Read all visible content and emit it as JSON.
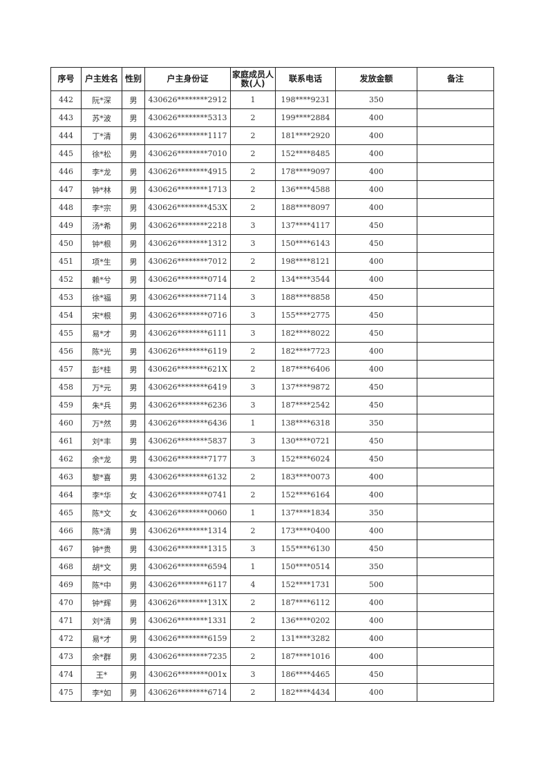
{
  "table": {
    "headers": [
      "序号",
      "户主姓名",
      "性别",
      "户主身份证",
      "家庭成员人数(人)",
      "联系电话",
      "发放金额",
      "备注"
    ],
    "rows": [
      [
        "442",
        "阮*深",
        "男",
        "430626********2912",
        "1",
        "198****9231",
        "350",
        ""
      ],
      [
        "443",
        "苏*波",
        "男",
        "430626********5313",
        "2",
        "199****2884",
        "400",
        ""
      ],
      [
        "444",
        "丁*清",
        "男",
        "430626********1117",
        "2",
        "181****2920",
        "400",
        ""
      ],
      [
        "445",
        "徐*松",
        "男",
        "430626********7010",
        "2",
        "152****8485",
        "400",
        ""
      ],
      [
        "446",
        "李*龙",
        "男",
        "430626********4915",
        "2",
        "178****9097",
        "400",
        ""
      ],
      [
        "447",
        "钟*林",
        "男",
        "430626********1713",
        "2",
        "136****4588",
        "400",
        ""
      ],
      [
        "448",
        "李*宗",
        "男",
        "430626********453X",
        "2",
        "188****8097",
        "400",
        ""
      ],
      [
        "449",
        "汤*希",
        "男",
        "430626********2218",
        "3",
        "137****4117",
        "450",
        ""
      ],
      [
        "450",
        "钟*根",
        "男",
        "430626********1312",
        "3",
        "150****6143",
        "450",
        ""
      ],
      [
        "451",
        "项*生",
        "男",
        "430626********7012",
        "2",
        "198****8121",
        "400",
        ""
      ],
      [
        "452",
        "赖*兮",
        "男",
        "430626********0714",
        "2",
        "134****3544",
        "400",
        ""
      ],
      [
        "453",
        "徐*福",
        "男",
        "430626********7114",
        "3",
        "188****8858",
        "450",
        ""
      ],
      [
        "454",
        "宋*根",
        "男",
        "430626********0716",
        "3",
        "155****2775",
        "450",
        ""
      ],
      [
        "455",
        "易*才",
        "男",
        "430626********6111",
        "3",
        "182****8022",
        "450",
        ""
      ],
      [
        "456",
        "陈*光",
        "男",
        "430626********6119",
        "2",
        "182****7723",
        "400",
        ""
      ],
      [
        "457",
        "彭*桂",
        "男",
        "430626********621X",
        "2",
        "187****6406",
        "400",
        ""
      ],
      [
        "458",
        "万*元",
        "男",
        "430626********6419",
        "3",
        "137****9872",
        "450",
        ""
      ],
      [
        "459",
        "朱*兵",
        "男",
        "430626********6236",
        "3",
        "187****2542",
        "450",
        ""
      ],
      [
        "460",
        "万*然",
        "男",
        "430626********6436",
        "1",
        "138****6318",
        "350",
        ""
      ],
      [
        "461",
        "刘*丰",
        "男",
        "430626********5837",
        "3",
        "130****0721",
        "450",
        ""
      ],
      [
        "462",
        "余*龙",
        "男",
        "430626********7177",
        "3",
        "152****6024",
        "450",
        ""
      ],
      [
        "463",
        "黎*喜",
        "男",
        "430626********6132",
        "2",
        "183****0073",
        "400",
        ""
      ],
      [
        "464",
        "李*华",
        "女",
        "430626********0741",
        "2",
        "152****6164",
        "400",
        ""
      ],
      [
        "465",
        "陈*文",
        "女",
        "430626********0060",
        "1",
        "137****1834",
        "350",
        ""
      ],
      [
        "466",
        "陈*清",
        "男",
        "430626********1314",
        "2",
        "173****0400",
        "400",
        ""
      ],
      [
        "467",
        "钟*贵",
        "男",
        "430626********1315",
        "3",
        "155****6130",
        "450",
        ""
      ],
      [
        "468",
        "胡*文",
        "男",
        "430626********6594",
        "1",
        "150****0514",
        "350",
        ""
      ],
      [
        "469",
        "陈*中",
        "男",
        "430626********6117",
        "4",
        "152****1731",
        "500",
        ""
      ],
      [
        "470",
        "钟*辉",
        "男",
        "430626********131X",
        "2",
        "187****6112",
        "400",
        ""
      ],
      [
        "471",
        "刘*清",
        "男",
        "430626********1331",
        "2",
        "136****0202",
        "400",
        ""
      ],
      [
        "472",
        "易*才",
        "男",
        "430626********6159",
        "2",
        "131****3282",
        "400",
        ""
      ],
      [
        "473",
        "余*群",
        "男",
        "430626********7235",
        "2",
        "187****1016",
        "400",
        ""
      ],
      [
        "474",
        "王*",
        "男",
        "430626********001x",
        "3",
        "186****4465",
        "450",
        ""
      ],
      [
        "475",
        "李*如",
        "男",
        "430626********6714",
        "2",
        "182****4434",
        "400",
        ""
      ]
    ]
  }
}
